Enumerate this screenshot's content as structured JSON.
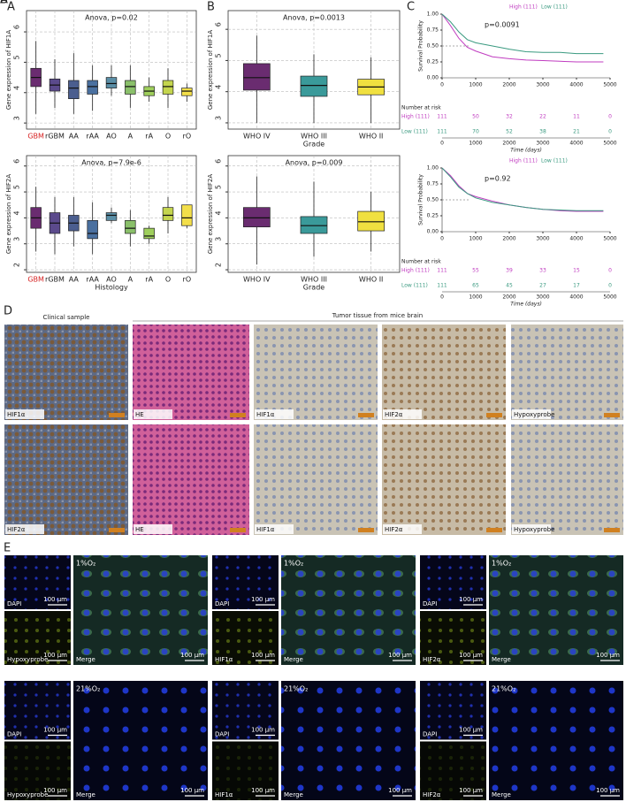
{
  "chart_data": [
    {
      "type": "box",
      "panel": "A",
      "title": "Anova, p=0.02",
      "ylabel": "Gene expression of HIF1A",
      "categories": [
        "GBM",
        "rGBM",
        "AA",
        "rAA",
        "AO",
        "A",
        "rA",
        "O",
        "rO"
      ],
      "category_label_colors": [
        "#d62020",
        "#222222",
        "#222222",
        "#222222",
        "#222222",
        "#222222",
        "#222222",
        "#222222",
        "#222222"
      ],
      "colors": [
        "#6a2c70",
        "#5b4a8c",
        "#4b5e8f",
        "#4a70a0",
        "#5a8ea6",
        "#8ac06a",
        "#9fcf5c",
        "#c4d54e",
        "#f3df4a"
      ],
      "low": [
        3.3,
        3.5,
        3.3,
        3.4,
        3.9,
        3.5,
        3.7,
        3.5,
        3.7
      ],
      "q1": [
        4.2,
        4.05,
        3.8,
        3.95,
        4.15,
        3.95,
        3.9,
        3.95,
        3.9
      ],
      "median": [
        4.5,
        4.25,
        4.15,
        4.2,
        4.3,
        4.2,
        4.05,
        4.2,
        4.05
      ],
      "q3": [
        4.8,
        4.45,
        4.4,
        4.4,
        4.5,
        4.4,
        4.2,
        4.4,
        4.15
      ],
      "high": [
        5.7,
        5.1,
        5.3,
        4.9,
        4.9,
        4.9,
        4.5,
        4.8,
        4.3
      ],
      "ylim": [
        2.8,
        6.7
      ],
      "yticks": [
        3,
        4,
        5,
        6
      ],
      "grid": true
    },
    {
      "type": "box",
      "panel": "A",
      "title": "Anova, p=7.9e-6",
      "ylabel": "Gene expression of HIF2A",
      "xlabel": "Histology",
      "categories": [
        "GBM",
        "rGBM",
        "AA",
        "rAA",
        "AO",
        "A",
        "rA",
        "O",
        "rO"
      ],
      "category_label_colors": [
        "#d62020",
        "#222222",
        "#222222",
        "#222222",
        "#222222",
        "#222222",
        "#222222",
        "#222222",
        "#222222"
      ],
      "colors": [
        "#6a2c70",
        "#5b4a8c",
        "#4b5e8f",
        "#4a70a0",
        "#5a8ea6",
        "#8ac06a",
        "#9fcf5c",
        "#c4d54e",
        "#f3df4a"
      ],
      "low": [
        2.7,
        2.6,
        2.9,
        2.6,
        3.8,
        2.9,
        3.0,
        3.4,
        3.6
      ],
      "q1": [
        3.6,
        3.4,
        3.5,
        3.2,
        3.9,
        3.4,
        3.2,
        3.9,
        3.7
      ],
      "median": [
        4.0,
        3.8,
        3.8,
        3.4,
        4.1,
        3.6,
        3.3,
        4.1,
        4.0
      ],
      "q3": [
        4.4,
        4.2,
        4.1,
        3.9,
        4.2,
        3.9,
        3.6,
        4.4,
        4.5
      ],
      "high": [
        5.2,
        4.8,
        4.8,
        4.6,
        4.4,
        4.3,
        3.7,
        4.8,
        4.5
      ],
      "ylim": [
        1.9,
        6.4
      ],
      "yticks": [
        2,
        3,
        4,
        5,
        6
      ],
      "grid": true
    },
    {
      "type": "box",
      "panel": "B",
      "title": "Anova, p=0.0013",
      "ylabel": "Gene expression of HIF1A",
      "xlabel": "Grade",
      "categories": [
        "WHO IV",
        "WHO III",
        "WHO II"
      ],
      "category_label_colors": [
        "#222222",
        "#222222",
        "#222222"
      ],
      "colors": [
        "#6a2c70",
        "#3a9a9a",
        "#f0e040"
      ],
      "low": [
        3.0,
        3.0,
        3.0
      ],
      "q1": [
        4.05,
        3.85,
        3.9
      ],
      "median": [
        4.45,
        4.2,
        4.15
      ],
      "q3": [
        4.9,
        4.5,
        4.4
      ],
      "high": [
        5.8,
        5.2,
        5.1
      ],
      "ylim": [
        2.8,
        6.6
      ],
      "yticks": [
        3,
        4,
        5,
        6
      ],
      "grid": true
    },
    {
      "type": "box",
      "panel": "B",
      "title": "Anova, p=0.009",
      "ylabel": "Gene expression of HIF2A",
      "xlabel": "Grade",
      "categories": [
        "WHO IV",
        "WHO III",
        "WHO II"
      ],
      "category_label_colors": [
        "#222222",
        "#222222",
        "#222222"
      ],
      "colors": [
        "#6a2c70",
        "#3a9a9a",
        "#f0e040"
      ],
      "low": [
        2.2,
        2.5,
        2.7
      ],
      "q1": [
        3.65,
        3.4,
        3.5
      ],
      "median": [
        4.0,
        3.7,
        3.85
      ],
      "q3": [
        4.4,
        4.05,
        4.25
      ],
      "high": [
        5.6,
        5.4,
        5.0
      ],
      "ylim": [
        1.9,
        6.4
      ],
      "yticks": [
        2,
        3,
        4,
        5,
        6
      ],
      "grid": true
    },
    {
      "type": "line",
      "panel": "C",
      "annotation": "p=0.0091",
      "ylabel": "Survival Probability",
      "xlabel": "Time (days)",
      "x": [
        0,
        250,
        500,
        750,
        1000,
        1500,
        2000,
        2500,
        3000,
        3500,
        4000,
        4500,
        4800
      ],
      "series": [
        {
          "name": "High (111)",
          "color": "#c03cc0",
          "values": [
            1,
            0.82,
            0.62,
            0.48,
            0.42,
            0.33,
            0.3,
            0.28,
            0.27,
            0.26,
            0.25,
            0.25,
            0.25
          ]
        },
        {
          "name": "Low (111)",
          "color": "#3a9a80",
          "values": [
            1,
            0.88,
            0.72,
            0.6,
            0.55,
            0.5,
            0.45,
            0.41,
            0.4,
            0.4,
            0.38,
            0.38,
            0.38
          ]
        }
      ],
      "xlim": [
        0,
        5000
      ],
      "xticks": [
        0,
        1000,
        2000,
        3000,
        4000,
        5000
      ],
      "ylim": [
        0,
        1
      ],
      "yticks": [
        {
          "value": 0,
          "label": "0.00"
        },
        {
          "value": 0.25,
          "label": "0.25"
        },
        {
          "value": 0.5,
          "label": "0.50"
        },
        {
          "value": 0.75,
          "label": "0.75"
        },
        {
          "value": 1,
          "label": "1.00"
        }
      ],
      "risk_table": {
        "title": "Number at risk",
        "rows": [
          {
            "name": "High (111)",
            "values": [
              111,
              50,
              32,
              22,
              11,
              0
            ]
          },
          {
            "name": "Low (111)",
            "values": [
              111,
              70,
              52,
              38,
              21,
              0
            ]
          }
        ]
      }
    },
    {
      "type": "line",
      "panel": "",
      "annotation": "p=0.92",
      "ylabel": "Survival Probability",
      "xlabel": "Time (days)",
      "x": [
        0,
        250,
        500,
        750,
        1000,
        1500,
        2000,
        2500,
        3000,
        3500,
        4000,
        4500,
        4800
      ],
      "series": [
        {
          "name": "High (111)",
          "color": "#c03cc0",
          "values": [
            1,
            0.88,
            0.72,
            0.6,
            0.55,
            0.48,
            0.42,
            0.38,
            0.35,
            0.33,
            0.32,
            0.32,
            0.32
          ]
        },
        {
          "name": "Low (111)",
          "color": "#3a9a80",
          "values": [
            1,
            0.86,
            0.7,
            0.6,
            0.53,
            0.46,
            0.42,
            0.38,
            0.35,
            0.34,
            0.33,
            0.33,
            0.33
          ]
        }
      ],
      "xlim": [
        0,
        5000
      ],
      "xticks": [
        0,
        1000,
        2000,
        3000,
        4000,
        5000
      ],
      "ylim": [
        0,
        1
      ],
      "yticks": [
        {
          "value": 0,
          "label": "0.00"
        },
        {
          "value": 0.25,
          "label": "0.25"
        },
        {
          "value": 0.5,
          "label": "0.50"
        },
        {
          "value": 0.75,
          "label": "0.75"
        },
        {
          "value": 1,
          "label": "1.00"
        }
      ],
      "risk_table": {
        "title": "Number at risk",
        "rows": [
          {
            "name": "High (111)",
            "values": [
              111,
              55,
              39,
              33,
              15,
              0
            ]
          },
          {
            "name": "Low (111)",
            "values": [
              111,
              65,
              45,
              27,
              17,
              0
            ]
          }
        ]
      }
    }
  ],
  "panel_d": {
    "label": "D",
    "clinical_title": "Clinical sample",
    "tumor_title": "Tumor tissue from mice brain",
    "rows": [
      [
        "HIF1α",
        "HE",
        "HIF1α",
        "HIF2α",
        "Hypoxyprobe"
      ],
      [
        "HIF2α",
        "HE",
        "HIF1α",
        "HIF2α",
        "Hypoxyprobe"
      ]
    ]
  },
  "panel_e": {
    "label": "E",
    "conditions": [
      "1%O₂",
      "21%O₂"
    ],
    "probes": [
      "Hypoxyprobe",
      "HIF1α",
      "HIF2α"
    ],
    "dapi": "DAPI",
    "merge": "Merge",
    "scale": "100 μm"
  }
}
